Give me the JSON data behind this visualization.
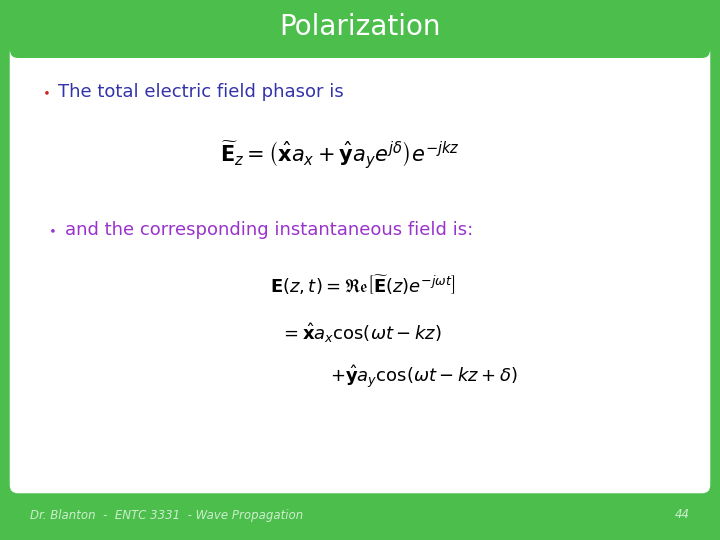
{
  "title": "Polarization",
  "title_color": "#ffffff",
  "title_bg_color": "#4cbe4c",
  "slide_bg_color": "#4cbe4c",
  "content_bg_color": "#ffffff",
  "bullet1_text": "The total electric field phasor is",
  "bullet1_color": "#3333aa",
  "bullet1_dot_color": "#cc2222",
  "bullet2_text": "and the corresponding instantaneous field is:",
  "bullet2_color": "#9933cc",
  "bullet2_dot_color": "#9933cc",
  "footer_text": "Dr. Blanton  -  ENTC 3331  - Wave Propagation",
  "footer_page": "44",
  "footer_color": "#cceecc"
}
